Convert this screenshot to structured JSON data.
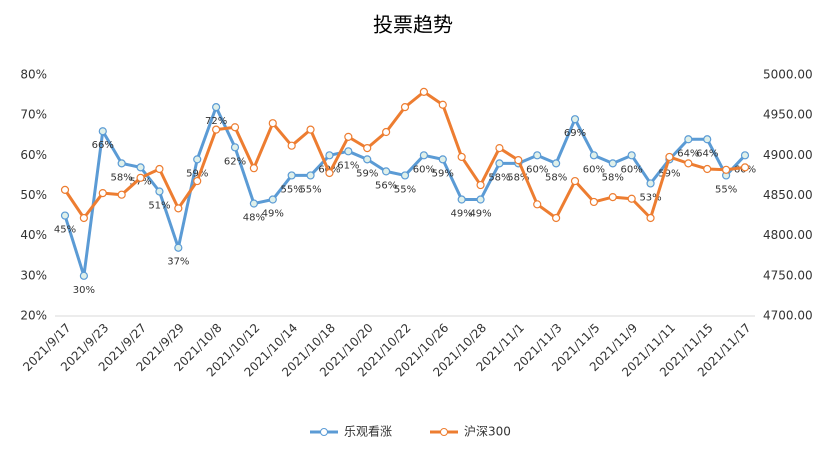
{
  "chart_data": {
    "type": "line",
    "title": "投票趋势",
    "categories": [
      "2021/9/17",
      null,
      "2021/9/23",
      null,
      "2021/9/27",
      null,
      "2021/9/29",
      null,
      "2021/10/8",
      null,
      "2021/10/12",
      null,
      "2021/10/14",
      null,
      "2021/10/18",
      null,
      "2021/10/20",
      null,
      "2021/10/22",
      null,
      "2021/10/26",
      null,
      "2021/10/28",
      null,
      "2021/11/1",
      null,
      "2021/11/3",
      null,
      "2021/11/5",
      null,
      "2021/11/9",
      null,
      "2021/11/11",
      null,
      "2021/11/15",
      null,
      "2021/11/17"
    ],
    "series": [
      {
        "name": "乐观看涨",
        "color": "#5b9bd5",
        "values": [
          45,
          30,
          66,
          58,
          57,
          51,
          37,
          59,
          72,
          62,
          48,
          49,
          55,
          55,
          60,
          61,
          59,
          56,
          55,
          60,
          59,
          49,
          49,
          58,
          58,
          60,
          58,
          69,
          60,
          58,
          60,
          53,
          59,
          64,
          64,
          55,
          60
        ],
        "value_labels": [
          "45%",
          "30%",
          "66%",
          "58%",
          "57%",
          "51%",
          "37%",
          "59%",
          "72%",
          "62%",
          "48%",
          "49%",
          "55%",
          "55%",
          "60%",
          "61%",
          "59%",
          "56%",
          "55%",
          "60%",
          "59%",
          "49%",
          "49%",
          "58%",
          "58%",
          "60%",
          "58%",
          "69%",
          "60%",
          "58%",
          "60%",
          "53%",
          "59%",
          "64%",
          "64%",
          "55%",
          "60%"
        ]
      },
      {
        "name": "沪深300",
        "color": "#ed7d31",
        "axis": "y2",
        "values": [
          4857,
          4822,
          4853,
          4851,
          4872,
          4883,
          4834,
          4868,
          4932,
          4935,
          4884,
          4940,
          4912,
          4932,
          4878,
          4923,
          4909,
          4929,
          4960,
          4979,
          4963,
          4898,
          4863,
          4909,
          4894,
          4839,
          4822,
          4868,
          4842,
          4848,
          4846,
          4822,
          4898,
          4890,
          4883,
          4882,
          4885
        ]
      }
    ],
    "ylim": [
      20,
      80
    ],
    "yticks": [
      {
        "value": 20,
        "label": "20%"
      },
      {
        "value": 30,
        "label": "30%"
      },
      {
        "value": 40,
        "label": "40%"
      },
      {
        "value": 50,
        "label": "50%"
      },
      {
        "value": 60,
        "label": "60%"
      },
      {
        "value": 70,
        "label": "70%"
      },
      {
        "value": 80,
        "label": "80%"
      }
    ],
    "y2lim": [
      4700,
      5000
    ],
    "y2ticks": [
      {
        "value": 4700,
        "label": "4700.00"
      },
      {
        "value": 4750,
        "label": "4750.00"
      },
      {
        "value": 4800,
        "label": "4800.00"
      },
      {
        "value": 4850,
        "label": "4850.00"
      },
      {
        "value": 4900,
        "label": "4900.00"
      },
      {
        "value": 4950,
        "label": "4950.00"
      },
      {
        "value": 5000,
        "label": "5000.00"
      }
    ],
    "legend": "bottom"
  }
}
